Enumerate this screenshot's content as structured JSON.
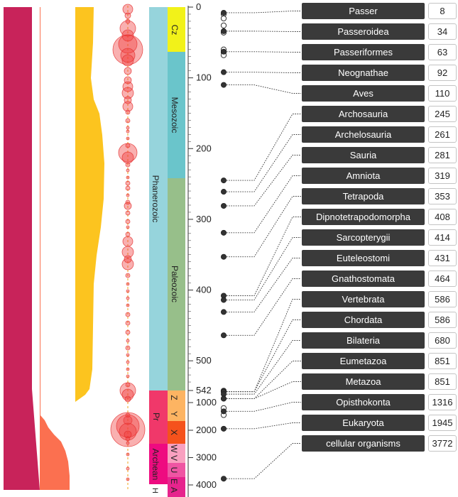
{
  "timescale": {
    "ticks": [
      {
        "label": "0",
        "value": 0
      },
      {
        "label": "100",
        "value": 100
      },
      {
        "label": "200",
        "value": 200
      },
      {
        "label": "300",
        "value": 300
      },
      {
        "label": "400",
        "value": 400
      },
      {
        "label": "500",
        "value": 500
      },
      {
        "label": "542",
        "value": 542
      },
      {
        "label": "1000",
        "value": 1000
      },
      {
        "label": "2000",
        "value": 2000
      },
      {
        "label": "3000",
        "value": 3000
      },
      {
        "label": "4000",
        "value": 4000
      }
    ],
    "eons": [
      {
        "label": "Phanerozoic",
        "color": "#96d4dc"
      },
      {
        "label": "Pr",
        "color": "#f0386a"
      },
      {
        "label": "Archean",
        "color": "#ee0b80"
      },
      {
        "label": "H",
        "color": "#ffffff"
      }
    ],
    "eras": [
      {
        "label": "Cz",
        "color": "#f2f219"
      },
      {
        "label": "Mesozoic",
        "color": "#6ac5cb"
      },
      {
        "label": "Paleozoic",
        "color": "#97bf8a"
      },
      {
        "label": "Z",
        "color": "#fdb462"
      },
      {
        "label": "Y",
        "color": "#fdb462"
      },
      {
        "label": "X",
        "color": "#f5521c"
      },
      {
        "label": "W",
        "color": "#f9a0c0"
      },
      {
        "label": "V",
        "color": "#f9a0c0"
      },
      {
        "label": "U",
        "color": "#ef55a3"
      },
      {
        "label": "E",
        "color": "#e6248d"
      },
      {
        "label": "A",
        "color": "#e6248d"
      }
    ]
  },
  "taxa": [
    {
      "name": "Passer",
      "age": "8",
      "mya": 8
    },
    {
      "name": "Passeroidea",
      "age": "34",
      "mya": 34
    },
    {
      "name": "Passeriformes",
      "age": "63",
      "mya": 63
    },
    {
      "name": "Neognathae",
      "age": "92",
      "mya": 92
    },
    {
      "name": "Aves",
      "age": "110",
      "mya": 110
    },
    {
      "name": "Archosauria",
      "age": "245",
      "mya": 245
    },
    {
      "name": "Archelosauria",
      "age": "261",
      "mya": 261
    },
    {
      "name": "Sauria",
      "age": "281",
      "mya": 281
    },
    {
      "name": "Amniota",
      "age": "319",
      "mya": 319
    },
    {
      "name": "Tetrapoda",
      "age": "353",
      "mya": 353
    },
    {
      "name": "Dipnotetrapodomorpha",
      "age": "408",
      "mya": 408
    },
    {
      "name": "Sarcopterygii",
      "age": "414",
      "mya": 414
    },
    {
      "name": "Euteleostomi",
      "age": "431",
      "mya": 431
    },
    {
      "name": "Gnathostomata",
      "age": "464",
      "mya": 464
    },
    {
      "name": "Vertebrata",
      "age": "586",
      "mya": 586
    },
    {
      "name": "Chordata",
      "age": "586",
      "mya": 586
    },
    {
      "name": "Bilateria",
      "age": "680",
      "mya": 680
    },
    {
      "name": "Eumetazoa",
      "age": "851",
      "mya": 851
    },
    {
      "name": "Metazoa",
      "age": "851",
      "mya": 851
    },
    {
      "name": "Opisthokonta",
      "age": "1316",
      "mya": 1316
    },
    {
      "name": "Eukaryota",
      "age": "1945",
      "mya": 1945
    },
    {
      "name": "cellular organisms",
      "age": "3772",
      "mya": 3772
    }
  ],
  "extra_nodes_mya": [
    10,
    16,
    26,
    36,
    60,
    64,
    68,
    550,
    560,
    575,
    1200,
    1450
  ],
  "colors": {
    "crimson": "#c8235a",
    "orange": "#fb7050",
    "gold": "#fcc41f",
    "bubble": "#f0393a",
    "label_box": "#3a3a3a"
  }
}
